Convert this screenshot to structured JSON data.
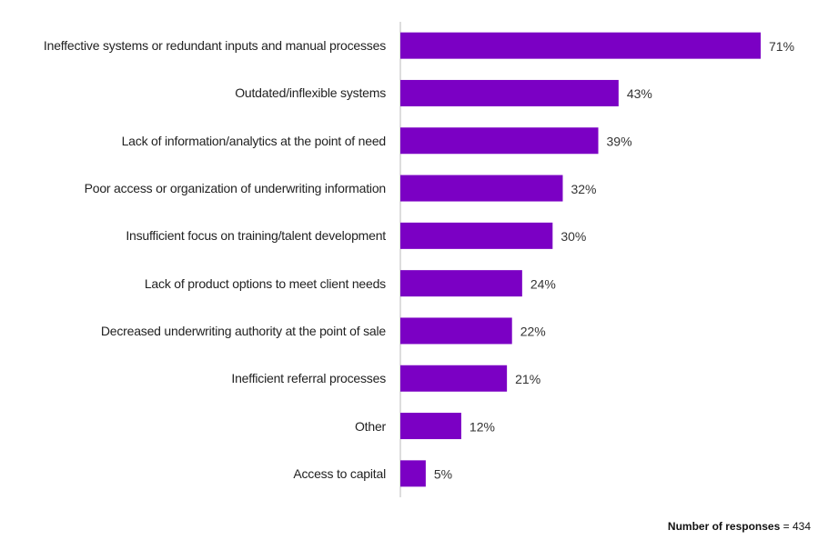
{
  "chart_data": {
    "type": "barh",
    "categories": [
      "Ineffective systems or redundant inputs and manual processes",
      "Outdated/inflexible systems",
      "Lack of information/analytics at the point of need",
      "Poor access or organization of underwriting information",
      "Insufficient focus on training/talent development",
      "Lack of product options to meet client needs",
      "Decreased underwriting authority at the point of sale",
      "Inefficient referral processes",
      "Other",
      "Access to capital"
    ],
    "values": [
      71,
      43,
      39,
      32,
      30,
      24,
      22,
      21,
      12,
      5
    ],
    "value_labels": [
      "71%",
      "43%",
      "39%",
      "32%",
      "30%",
      "24%",
      "22%",
      "21%",
      "12%",
      "5%"
    ],
    "color": "#7b00c4",
    "note_label": "Number of responses",
    "note_value": "= 434"
  }
}
